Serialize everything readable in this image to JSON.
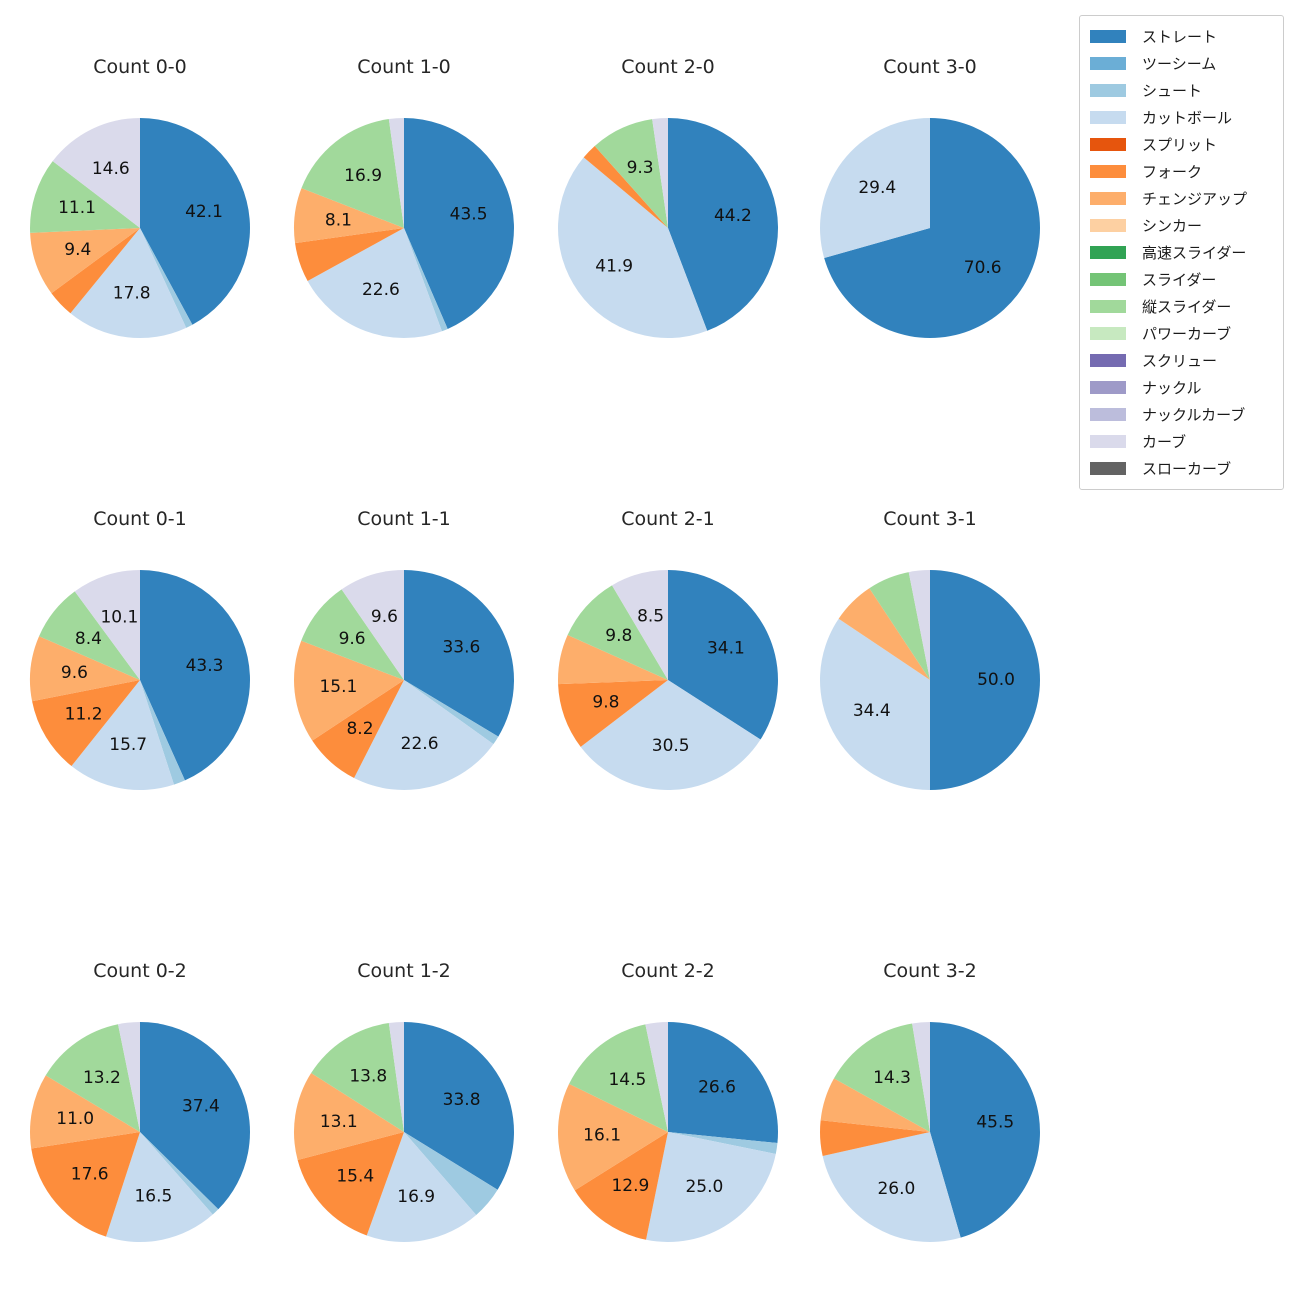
{
  "figure": {
    "background": "#ffffff",
    "title_color": "#262626",
    "label_color": "#111111"
  },
  "legend": {
    "position": "upper right",
    "entries": [
      {
        "label": "ストレート",
        "color": "#3182bd"
      },
      {
        "label": "ツーシーム",
        "color": "#6baed6"
      },
      {
        "label": "シュート",
        "color": "#9ecae1"
      },
      {
        "label": "カットボール",
        "color": "#c6dbef"
      },
      {
        "label": "スプリット",
        "color": "#e6550d"
      },
      {
        "label": "フォーク",
        "color": "#fd8d3c"
      },
      {
        "label": "チェンジアップ",
        "color": "#fdae6b"
      },
      {
        "label": "シンカー",
        "color": "#fdd0a2"
      },
      {
        "label": "高速スライダー",
        "color": "#31a354"
      },
      {
        "label": "スライダー",
        "color": "#74c476"
      },
      {
        "label": "縦スライダー",
        "color": "#a1d99b"
      },
      {
        "label": "パワーカーブ",
        "color": "#c7e9c0"
      },
      {
        "label": "スクリュー",
        "color": "#756bb1"
      },
      {
        "label": "ナックル",
        "color": "#9e9ac8"
      },
      {
        "label": "ナックルカーブ",
        "color": "#bcbddc"
      },
      {
        "label": "カーブ",
        "color": "#dadaeb"
      },
      {
        "label": "スローカーブ",
        "color": "#636363"
      }
    ]
  },
  "chart_data": {
    "type": "pie",
    "unit": "percent",
    "start_angle": 90,
    "direction": "clockwise",
    "grid": "4 columns x 3 rows",
    "charts": [
      {
        "title": "Count 0-0",
        "slices": [
          {
            "name": "ストレート",
            "value": 42.1,
            "label": "42.1"
          },
          {
            "name": "シュート",
            "value": 1.0,
            "label": ""
          },
          {
            "name": "カットボール",
            "value": 17.8,
            "label": "17.8"
          },
          {
            "name": "フォーク",
            "value": 4.0,
            "label": ""
          },
          {
            "name": "チェンジアップ",
            "value": 9.4,
            "label": "9.4"
          },
          {
            "name": "縦スライダー",
            "value": 11.1,
            "label": "11.1"
          },
          {
            "name": "カーブ",
            "value": 14.6,
            "label": "14.6"
          }
        ]
      },
      {
        "title": "Count 1-0",
        "slices": [
          {
            "name": "ストレート",
            "value": 43.5,
            "label": "43.5"
          },
          {
            "name": "シュート",
            "value": 0.9,
            "label": ""
          },
          {
            "name": "カットボール",
            "value": 22.6,
            "label": "22.6"
          },
          {
            "name": "フォーク",
            "value": 5.8,
            "label": ""
          },
          {
            "name": "チェンジアップ",
            "value": 8.1,
            "label": "8.1"
          },
          {
            "name": "縦スライダー",
            "value": 16.9,
            "label": "16.9"
          },
          {
            "name": "カーブ",
            "value": 2.2,
            "label": ""
          }
        ]
      },
      {
        "title": "Count 2-0",
        "slices": [
          {
            "name": "ストレート",
            "value": 44.2,
            "label": "44.2"
          },
          {
            "name": "カットボール",
            "value": 41.9,
            "label": "41.9"
          },
          {
            "name": "フォーク",
            "value": 2.3,
            "label": ""
          },
          {
            "name": "縦スライダー",
            "value": 9.3,
            "label": "9.3"
          },
          {
            "name": "カーブ",
            "value": 2.3,
            "label": ""
          }
        ]
      },
      {
        "title": "Count 3-0",
        "slices": [
          {
            "name": "ストレート",
            "value": 70.6,
            "label": "70.6"
          },
          {
            "name": "カットボール",
            "value": 29.4,
            "label": "29.4"
          }
        ]
      },
      {
        "title": "Count 0-1",
        "slices": [
          {
            "name": "ストレート",
            "value": 43.3,
            "label": "43.3"
          },
          {
            "name": "シュート",
            "value": 1.7,
            "label": ""
          },
          {
            "name": "カットボール",
            "value": 15.7,
            "label": "15.7"
          },
          {
            "name": "フォーク",
            "value": 11.2,
            "label": "11.2"
          },
          {
            "name": "チェンジアップ",
            "value": 9.6,
            "label": "9.6"
          },
          {
            "name": "縦スライダー",
            "value": 8.4,
            "label": "8.4"
          },
          {
            "name": "カーブ",
            "value": 10.1,
            "label": "10.1"
          }
        ]
      },
      {
        "title": "Count 1-1",
        "slices": [
          {
            "name": "ストレート",
            "value": 33.6,
            "label": "33.6"
          },
          {
            "name": "シュート",
            "value": 1.3,
            "label": ""
          },
          {
            "name": "カットボール",
            "value": 22.6,
            "label": "22.6"
          },
          {
            "name": "フォーク",
            "value": 8.2,
            "label": "8.2"
          },
          {
            "name": "チェンジアップ",
            "value": 15.1,
            "label": "15.1"
          },
          {
            "name": "縦スライダー",
            "value": 9.6,
            "label": "9.6"
          },
          {
            "name": "カーブ",
            "value": 9.6,
            "label": "9.6"
          }
        ]
      },
      {
        "title": "Count 2-1",
        "slices": [
          {
            "name": "ストレート",
            "value": 34.1,
            "label": "34.1"
          },
          {
            "name": "カットボール",
            "value": 30.5,
            "label": "30.5"
          },
          {
            "name": "フォーク",
            "value": 9.8,
            "label": "9.8"
          },
          {
            "name": "チェンジアップ",
            "value": 7.3,
            "label": ""
          },
          {
            "name": "縦スライダー",
            "value": 9.8,
            "label": "9.8"
          },
          {
            "name": "カーブ",
            "value": 8.5,
            "label": "8.5"
          }
        ]
      },
      {
        "title": "Count 3-1",
        "slices": [
          {
            "name": "ストレート",
            "value": 50.0,
            "label": "50.0"
          },
          {
            "name": "カットボール",
            "value": 34.4,
            "label": "34.4"
          },
          {
            "name": "チェンジアップ",
            "value": 6.3,
            "label": ""
          },
          {
            "name": "縦スライダー",
            "value": 6.2,
            "label": ""
          },
          {
            "name": "カーブ",
            "value": 3.1,
            "label": ""
          }
        ]
      },
      {
        "title": "Count 0-2",
        "slices": [
          {
            "name": "ストレート",
            "value": 37.4,
            "label": "37.4"
          },
          {
            "name": "シュート",
            "value": 1.1,
            "label": ""
          },
          {
            "name": "カットボール",
            "value": 16.5,
            "label": "16.5"
          },
          {
            "name": "フォーク",
            "value": 17.6,
            "label": "17.6"
          },
          {
            "name": "チェンジアップ",
            "value": 11.0,
            "label": "11.0"
          },
          {
            "name": "縦スライダー",
            "value": 13.2,
            "label": "13.2"
          },
          {
            "name": "カーブ",
            "value": 3.2,
            "label": ""
          }
        ]
      },
      {
        "title": "Count 1-2",
        "slices": [
          {
            "name": "ストレート",
            "value": 33.8,
            "label": "33.8"
          },
          {
            "name": "シュート",
            "value": 4.8,
            "label": ""
          },
          {
            "name": "カットボール",
            "value": 16.9,
            "label": "16.9"
          },
          {
            "name": "フォーク",
            "value": 15.4,
            "label": "15.4"
          },
          {
            "name": "チェンジアップ",
            "value": 13.1,
            "label": "13.1"
          },
          {
            "name": "縦スライダー",
            "value": 13.8,
            "label": "13.8"
          },
          {
            "name": "カーブ",
            "value": 2.2,
            "label": ""
          }
        ]
      },
      {
        "title": "Count 2-2",
        "slices": [
          {
            "name": "ストレート",
            "value": 26.6,
            "label": "26.6"
          },
          {
            "name": "シュート",
            "value": 1.6,
            "label": ""
          },
          {
            "name": "カットボール",
            "value": 25.0,
            "label": "25.0"
          },
          {
            "name": "フォーク",
            "value": 12.9,
            "label": "12.9"
          },
          {
            "name": "チェンジアップ",
            "value": 16.1,
            "label": "16.1"
          },
          {
            "name": "縦スライダー",
            "value": 14.5,
            "label": "14.5"
          },
          {
            "name": "カーブ",
            "value": 3.3,
            "label": ""
          }
        ]
      },
      {
        "title": "Count 3-2",
        "slices": [
          {
            "name": "ストレート",
            "value": 45.5,
            "label": "45.5"
          },
          {
            "name": "カットボール",
            "value": 26.0,
            "label": "26.0"
          },
          {
            "name": "フォーク",
            "value": 5.2,
            "label": ""
          },
          {
            "name": "チェンジアップ",
            "value": 6.4,
            "label": ""
          },
          {
            "name": "縦スライダー",
            "value": 14.3,
            "label": "14.3"
          },
          {
            "name": "カーブ",
            "value": 2.6,
            "label": ""
          }
        ]
      }
    ]
  }
}
